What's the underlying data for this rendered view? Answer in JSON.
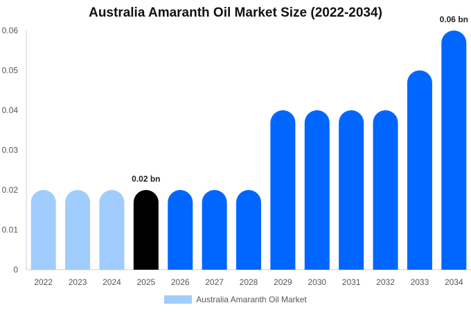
{
  "chart_data": {
    "type": "bar",
    "title": "Australia Amaranth Oil Market Size (2022-2034)",
    "categories": [
      "2022",
      "2023",
      "2024",
      "2025",
      "2026",
      "2027",
      "2028",
      "2029",
      "2030",
      "2031",
      "2032",
      "2033",
      "2034"
    ],
    "series": [
      {
        "name": "Australia Amaranth Oil Market",
        "values": [
          0.02,
          0.02,
          0.02,
          0.02,
          0.02,
          0.02,
          0.02,
          0.04,
          0.04,
          0.04,
          0.04,
          0.05,
          0.06
        ]
      }
    ],
    "ylim": [
      0,
      0.06
    ],
    "yticks": [
      "0",
      "0.01",
      "0.02",
      "0.03",
      "0.04",
      "0.05",
      "0.06"
    ],
    "data_labels": [
      {
        "category": "2025",
        "text": "0.02 bn"
      },
      {
        "category": "2034",
        "text": "0.06 bn"
      }
    ],
    "bar_colors": {
      "historical": "#a0cdfd",
      "current": "#000000",
      "forecast": "#0066ff"
    },
    "legend_position": "bottom-center",
    "grid": false
  }
}
